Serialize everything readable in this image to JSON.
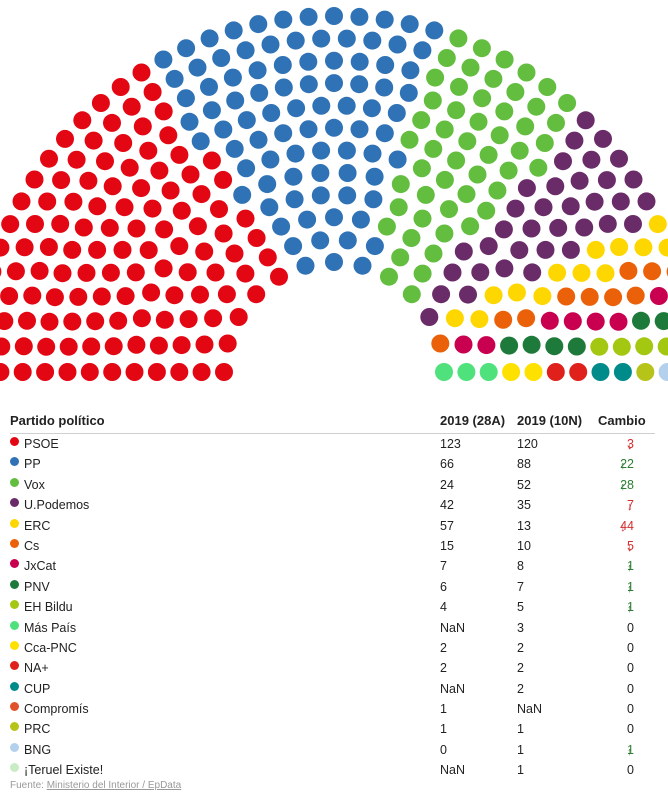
{
  "chart_data": {
    "type": "hemicycle",
    "total_seats": 350,
    "parties": [
      {
        "name": "PSOE",
        "color": "#e30613",
        "seats_a": "123",
        "seats_n": "120",
        "change": "3",
        "dir": "down"
      },
      {
        "name": "PP",
        "color": "#2f72b6",
        "seats_a": "66",
        "seats_n": "88",
        "change": "22",
        "dir": "up"
      },
      {
        "name": "Vox",
        "color": "#63be3f",
        "seats_a": "24",
        "seats_n": "52",
        "change": "28",
        "dir": "up"
      },
      {
        "name": "U.Podemos",
        "color": "#6a2c68",
        "seats_a": "42",
        "seats_n": "35",
        "change": "7",
        "dir": "down"
      },
      {
        "name": "ERC",
        "color": "#ffd700",
        "seats_a": "57",
        "seats_n": "13",
        "change": "44",
        "dir": "down"
      },
      {
        "name": "Cs",
        "color": "#eb6109",
        "seats_a": "15",
        "seats_n": "10",
        "change": "5",
        "dir": "down"
      },
      {
        "name": "JxCat",
        "color": "#c8004f",
        "seats_a": "7",
        "seats_n": "8",
        "change": "1",
        "dir": "up"
      },
      {
        "name": "PNV",
        "color": "#1e7a3a",
        "seats_a": "6",
        "seats_n": "7",
        "change": "1",
        "dir": "up"
      },
      {
        "name": "EH Bildu",
        "color": "#a4c812",
        "seats_a": "4",
        "seats_n": "5",
        "change": "1",
        "dir": "up"
      },
      {
        "name": "Más País",
        "color": "#4fe27c",
        "seats_a": "NaN",
        "seats_n": "3",
        "change": "0",
        "dir": "none"
      },
      {
        "name": "Cca-PNC",
        "color": "#ffe100",
        "seats_a": "2",
        "seats_n": "2",
        "change": "0",
        "dir": "none"
      },
      {
        "name": "NA+",
        "color": "#e0211b",
        "seats_a": "2",
        "seats_n": "2",
        "change": "0",
        "dir": "none"
      },
      {
        "name": "CUP",
        "color": "#008b8b",
        "seats_a": "NaN",
        "seats_n": "2",
        "change": "0",
        "dir": "none"
      },
      {
        "name": "Compromís",
        "color": "#e0522a",
        "seats_a": "1",
        "seats_n": "NaN",
        "change": "0",
        "dir": "none"
      },
      {
        "name": "PRC",
        "color": "#b6c41a",
        "seats_a": "1",
        "seats_n": "1",
        "change": "0",
        "dir": "none"
      },
      {
        "name": "BNG",
        "color": "#b3d1ec",
        "seats_a": "0",
        "seats_n": "1",
        "change": "1",
        "dir": "up"
      },
      {
        "name": "¡Teruel Existe!",
        "color": "#c8ecc6",
        "seats_a": "NaN",
        "seats_n": "1",
        "change": "0",
        "dir": "none"
      }
    ]
  },
  "table": {
    "col_party": "Partido político",
    "col_a": "2019 (28A)",
    "col_n": "2019 (10N)",
    "col_change": "Cambio"
  },
  "source": {
    "prefix": "Fuente: ",
    "text": "Ministerio del Interior / EpData"
  }
}
